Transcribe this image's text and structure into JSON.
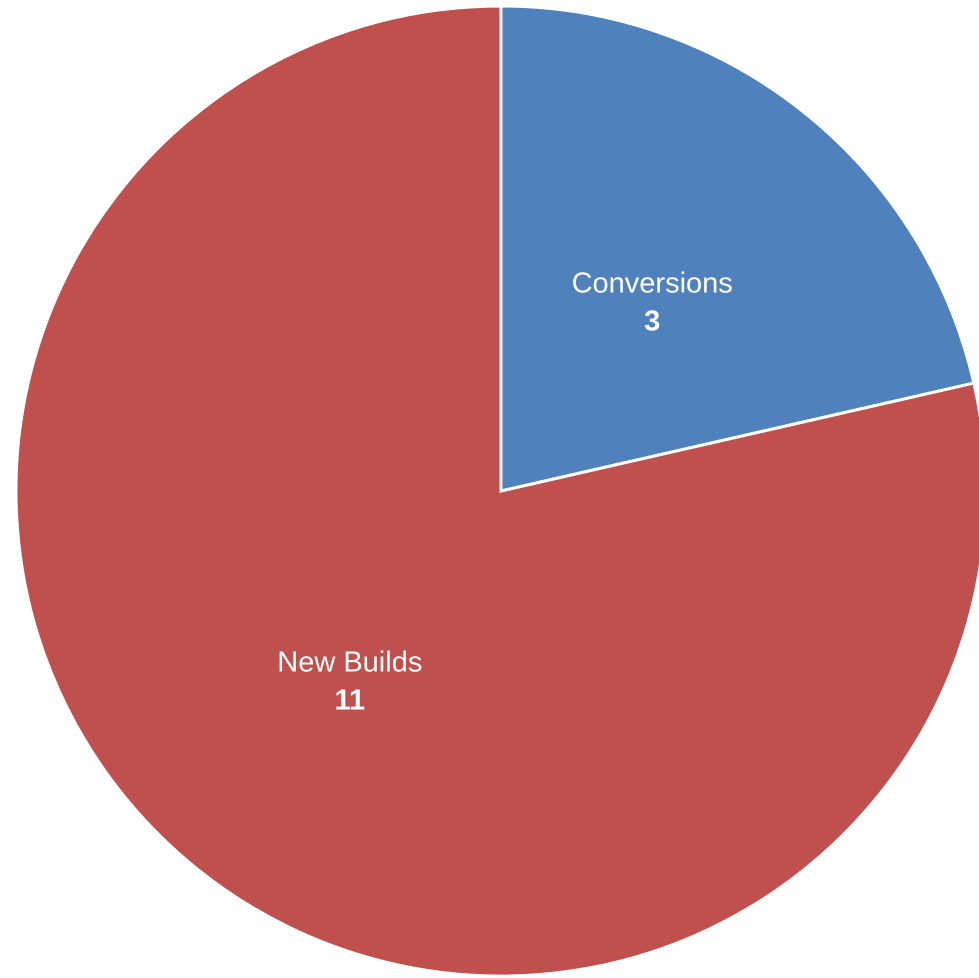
{
  "chart_data": {
    "type": "pie",
    "title": "",
    "start_angle_deg": 0,
    "direction": "clockwise",
    "legend": "none",
    "slices": [
      {
        "label": "Conversions",
        "value": 3,
        "color": "#4F81BD"
      },
      {
        "label": "New Builds",
        "value": 11,
        "color": "#C0504D"
      }
    ]
  }
}
